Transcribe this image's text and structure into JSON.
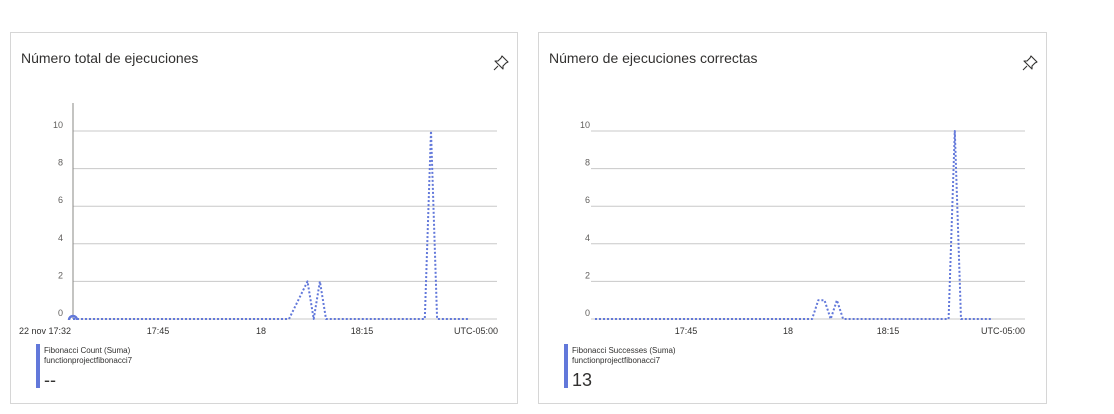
{
  "colors": {
    "series": "#6278da",
    "grid": "#c8c8c8",
    "axis": "#8a8886"
  },
  "cards": [
    {
      "title": "Número total de ejecuciones",
      "pin_icon": "pin-icon",
      "legend": {
        "name": "Fibonacci Count (Suma)",
        "resource": "functionproject​fibonacci7",
        "value": "--"
      },
      "chart_data": {
        "type": "line",
        "title": "Número total de ejecuciones",
        "y_ticks": [
          "0",
          "2",
          "4",
          "6",
          "8",
          "10"
        ],
        "x_ticks": [
          "22 nov 17:32",
          "17:45",
          "18",
          "18:15",
          "UTC-05:00"
        ],
        "ylim": [
          0,
          10
        ],
        "grid": true,
        "series": [
          {
            "name": "Fibonacci Count (Suma)",
            "x": [
              "17:32",
              "17:33",
              "18:07",
              "18:10",
              "18:11",
              "18:12",
              "18:13",
              "18:14",
              "18:29",
              "18:30",
              "18:31",
              "18:36"
            ],
            "y": [
              0,
              0,
              0,
              2,
              0,
              2,
              0,
              0,
              0,
              10,
              0,
              0
            ]
          }
        ]
      }
    },
    {
      "title": "Número de ejecuciones correctas",
      "pin_icon": "pin-icon",
      "legend": {
        "name": "Fibonacci Successes (Suma)",
        "resource": "functionproject​fibonacci7",
        "value": "13"
      },
      "chart_data": {
        "type": "line",
        "title": "Número de ejecuciones correctas",
        "y_ticks": [
          "0",
          "2",
          "4",
          "6",
          "8",
          "10"
        ],
        "x_ticks": [
          "17:45",
          "18",
          "18:15",
          "UTC-05:00"
        ],
        "ylim": [
          0,
          10
        ],
        "grid": true,
        "series": [
          {
            "name": "Fibonacci Successes (Suma)",
            "x": [
              "17:32",
              "18:07",
              "18:08",
              "18:09",
              "18:10",
              "18:11",
              "18:12",
              "18:13",
              "18:14",
              "18:29",
              "18:30",
              "18:31",
              "18:36"
            ],
            "y": [
              0,
              0,
              1,
              1,
              0,
              1,
              0,
              0,
              0,
              0,
              10,
              0,
              0
            ]
          }
        ]
      }
    }
  ]
}
